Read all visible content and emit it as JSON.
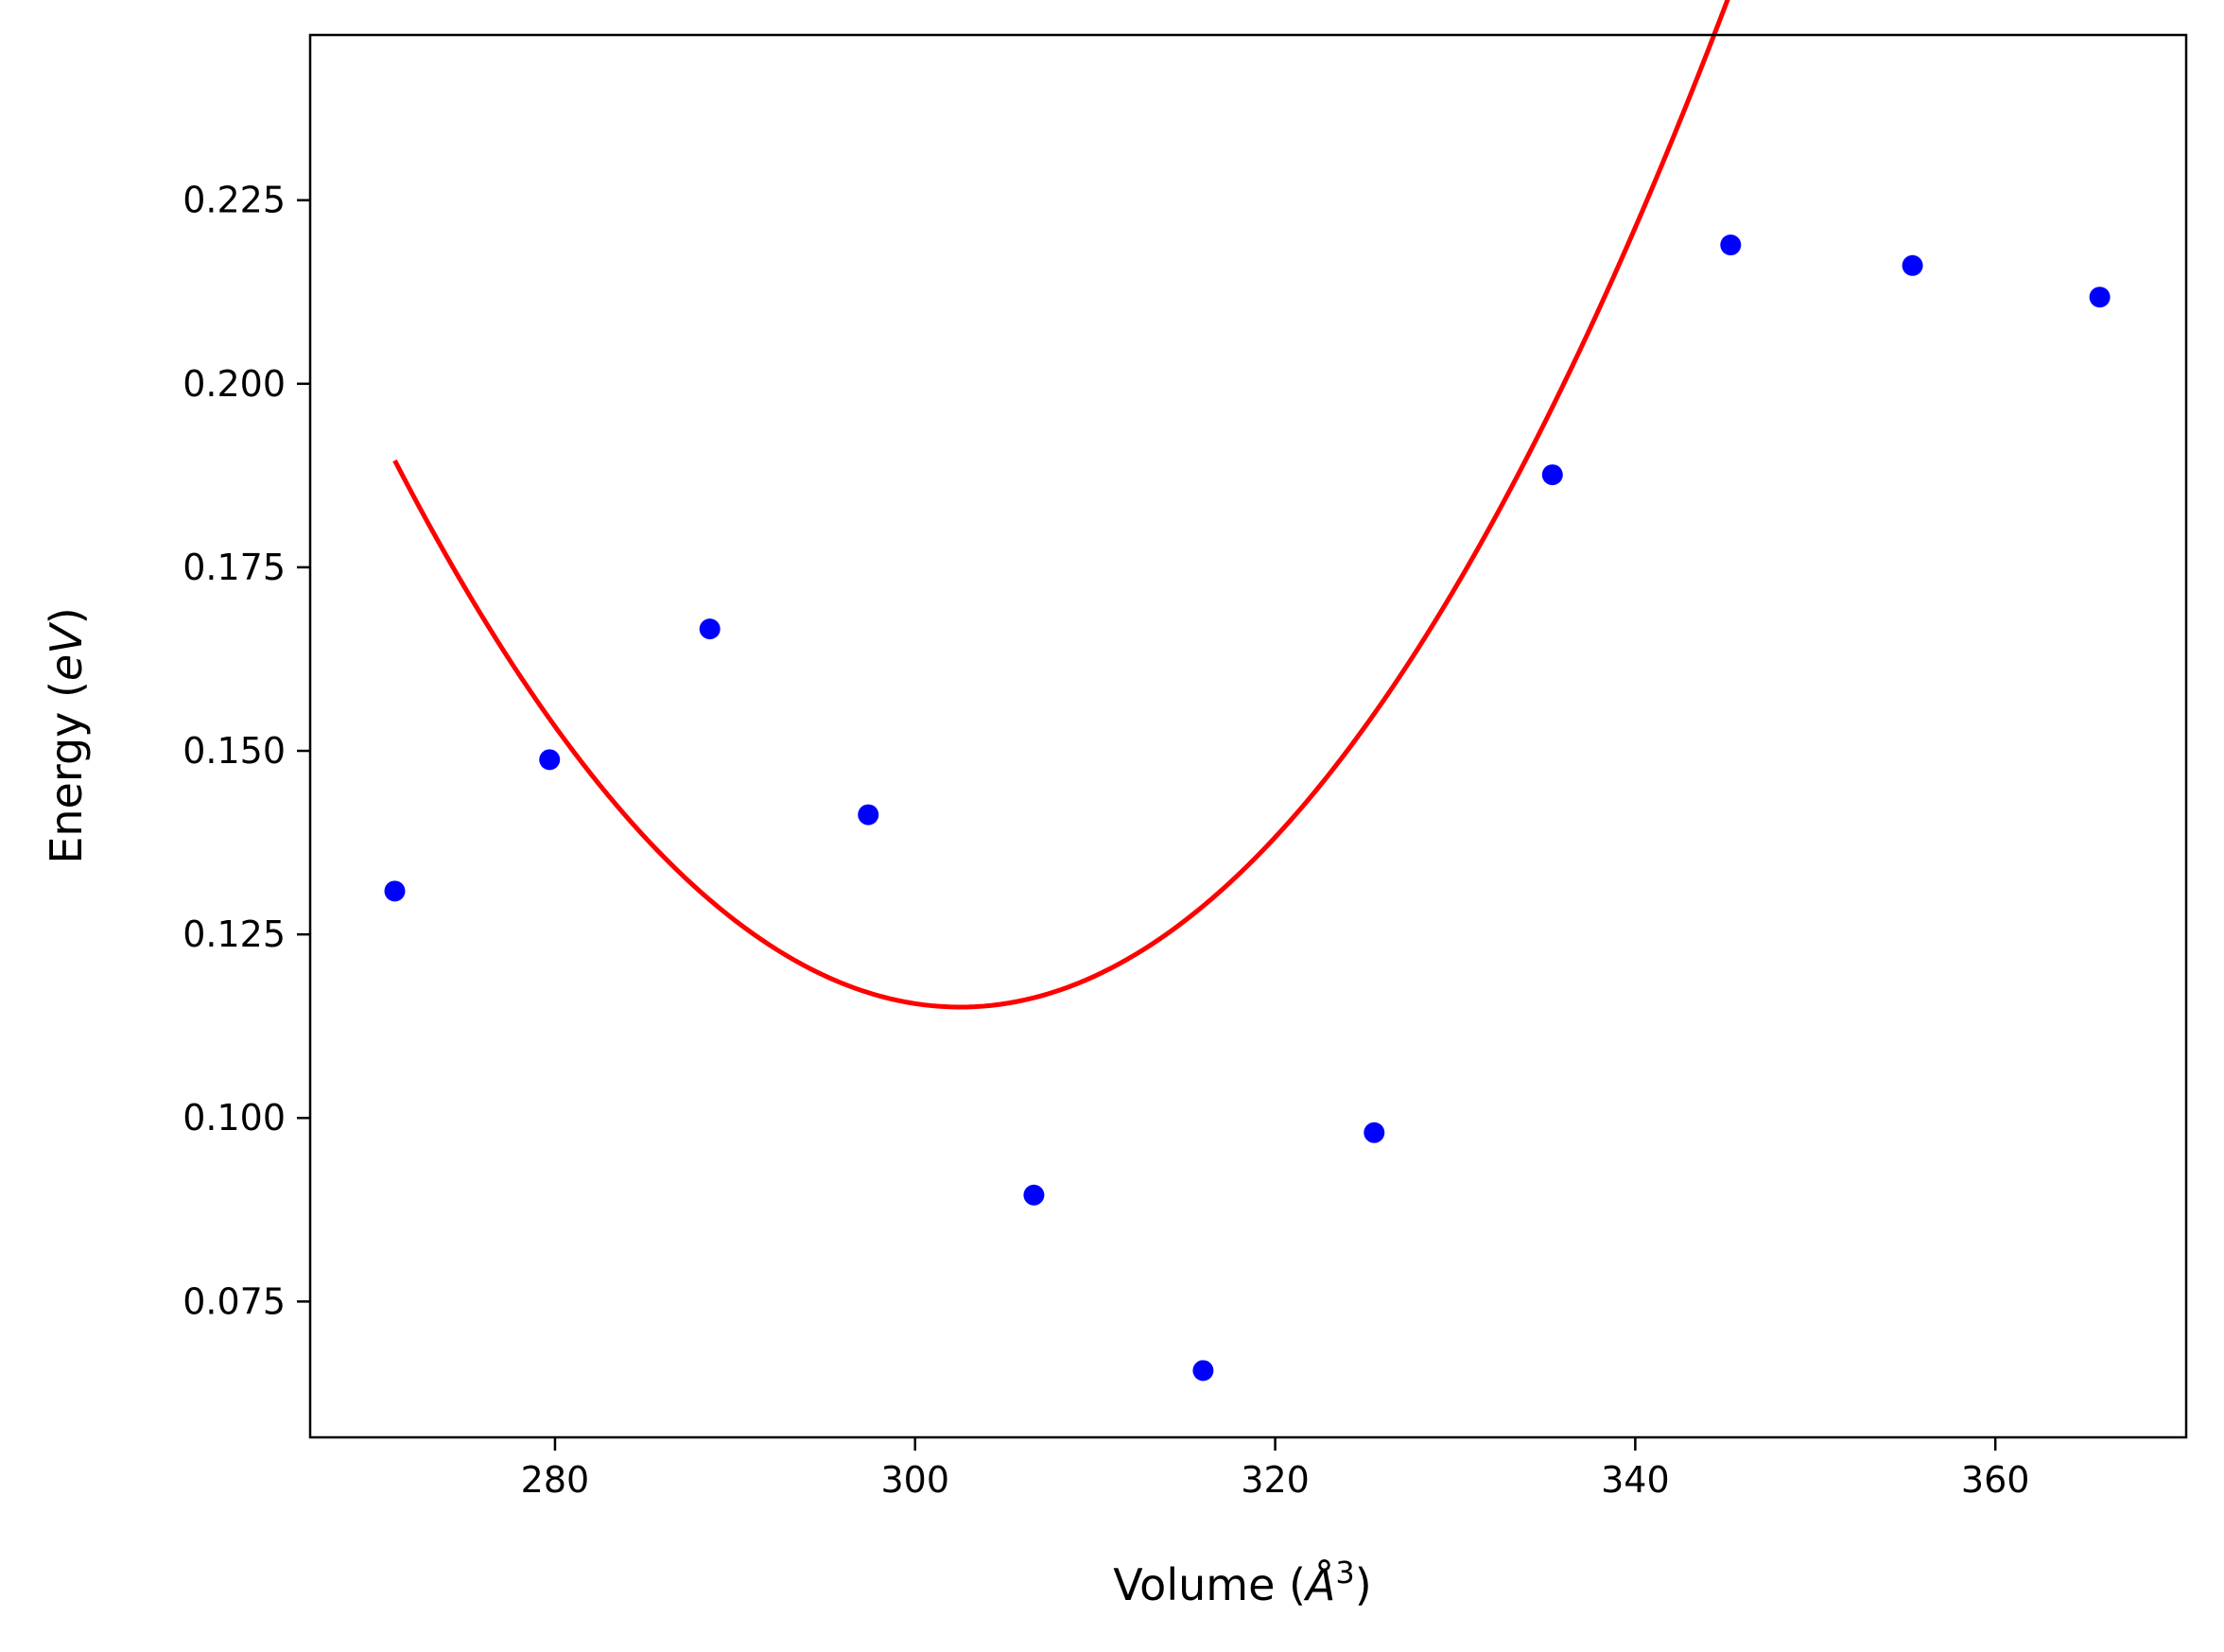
{
  "chart_data": {
    "type": "scatter",
    "title": "",
    "xlabel": {
      "prefix": "Volume (",
      "symbol": "Å",
      "sup": "3",
      "suffix": ")"
    },
    "ylabel": {
      "prefix": "Energy (",
      "italic": "eV",
      "suffix": ")"
    },
    "xlim": [
      266.4,
      370.6
    ],
    "ylim": [
      0.0565,
      0.2475
    ],
    "xticks": [
      280,
      300,
      320,
      340,
      360
    ],
    "xtick_labels": [
      "280",
      "300",
      "320",
      "340",
      "360"
    ],
    "yticks": [
      0.075,
      0.1,
      0.125,
      0.15,
      0.175,
      0.2,
      0.225
    ],
    "ytick_labels": [
      "0.075",
      "0.100",
      "0.125",
      "0.150",
      "0.175",
      "0.200",
      "0.225"
    ],
    "grid": false,
    "series": [
      {
        "kind": "points",
        "color": "#0000ff",
        "x": [
          271.1,
          279.7,
          288.6,
          297.4,
          306.6,
          316.0,
          325.5,
          335.4,
          345.3,
          355.4,
          365.8
        ],
        "y": [
          0.1309,
          0.1488,
          0.1666,
          0.1413,
          0.0895,
          0.0656,
          0.098,
          0.1876,
          0.2189,
          0.2161,
          0.2118
        ]
      },
      {
        "kind": "fit-curve",
        "color": "#ff0000",
        "x_range": [
          271.1,
          365.8
        ],
        "vertex_x": 302.5,
        "vertex_y": 0.1151,
        "curvature": 7.55e-05
      }
    ]
  }
}
